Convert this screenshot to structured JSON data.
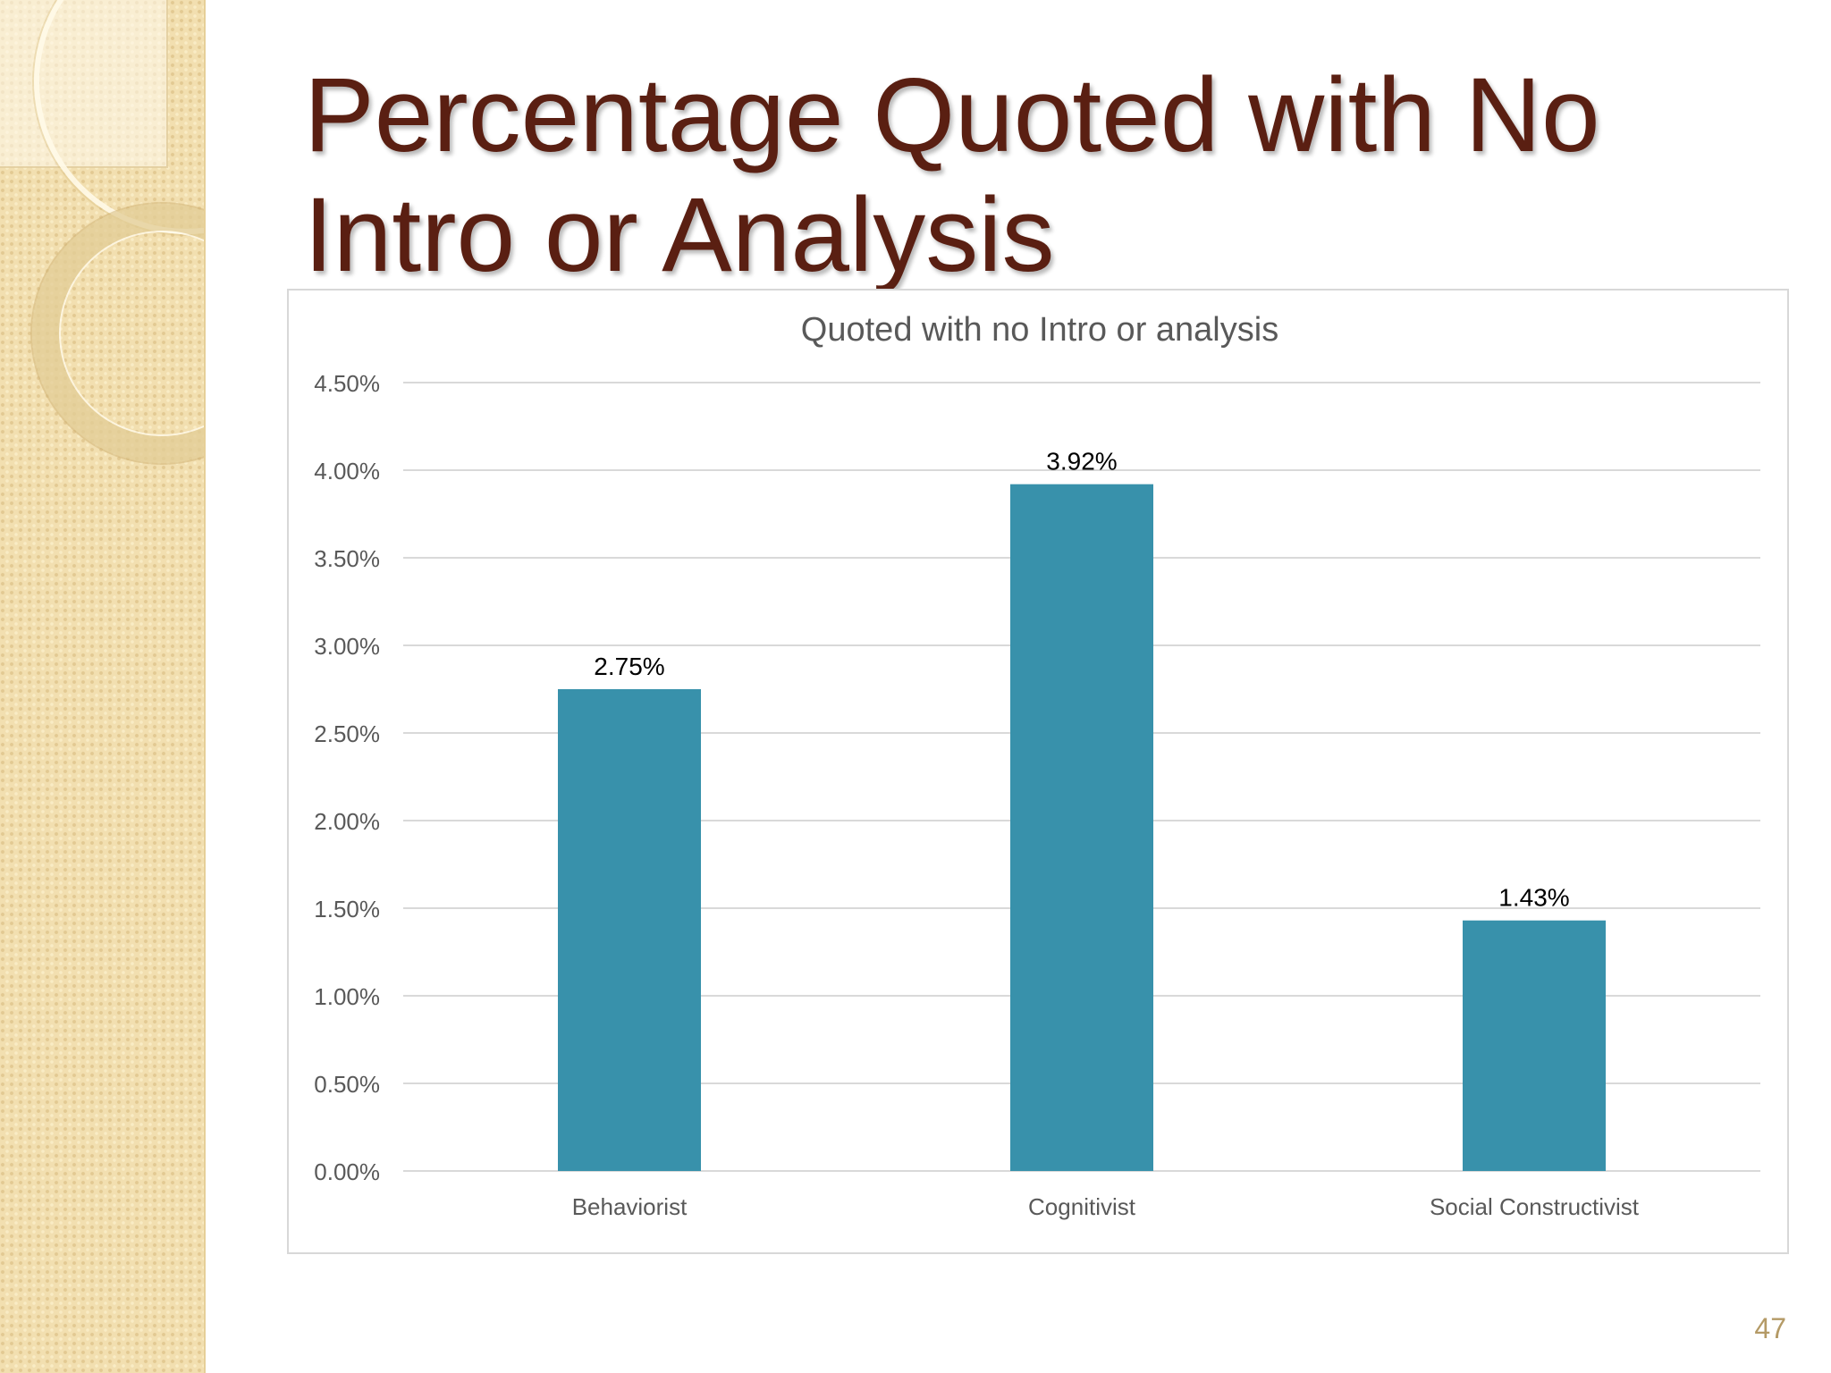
{
  "slide": {
    "title": "Percentage Quoted with No Intro or Analysis",
    "page_number": "47"
  },
  "colors": {
    "title": "#5a1f12",
    "bar": "#3891ab",
    "sidebar": "#f2dfb0"
  },
  "chart_data": {
    "type": "bar",
    "title": "Quoted with no Intro or analysis",
    "xlabel": "",
    "ylabel": "",
    "categories": [
      "Behaviorist",
      "Cognitivist",
      "Social Constructivist"
    ],
    "series": [
      {
        "values": [
          2.75,
          3.92,
          1.43
        ],
        "data_labels": [
          "2.75%",
          "3.92%",
          "1.43%"
        ]
      }
    ],
    "ylim": [
      0,
      4.5
    ],
    "yticks": [
      0,
      0.5,
      1,
      1.5,
      2,
      2.5,
      3,
      3.5,
      4,
      4.5
    ],
    "ytick_labels": [
      "0.00%",
      "0.50%",
      "1.00%",
      "1.50%",
      "2.00%",
      "2.50%",
      "3.00%",
      "3.50%",
      "4.00%",
      "4.50%"
    ],
    "grid": true,
    "legend": "none",
    "bar_color": "#3891ab"
  }
}
